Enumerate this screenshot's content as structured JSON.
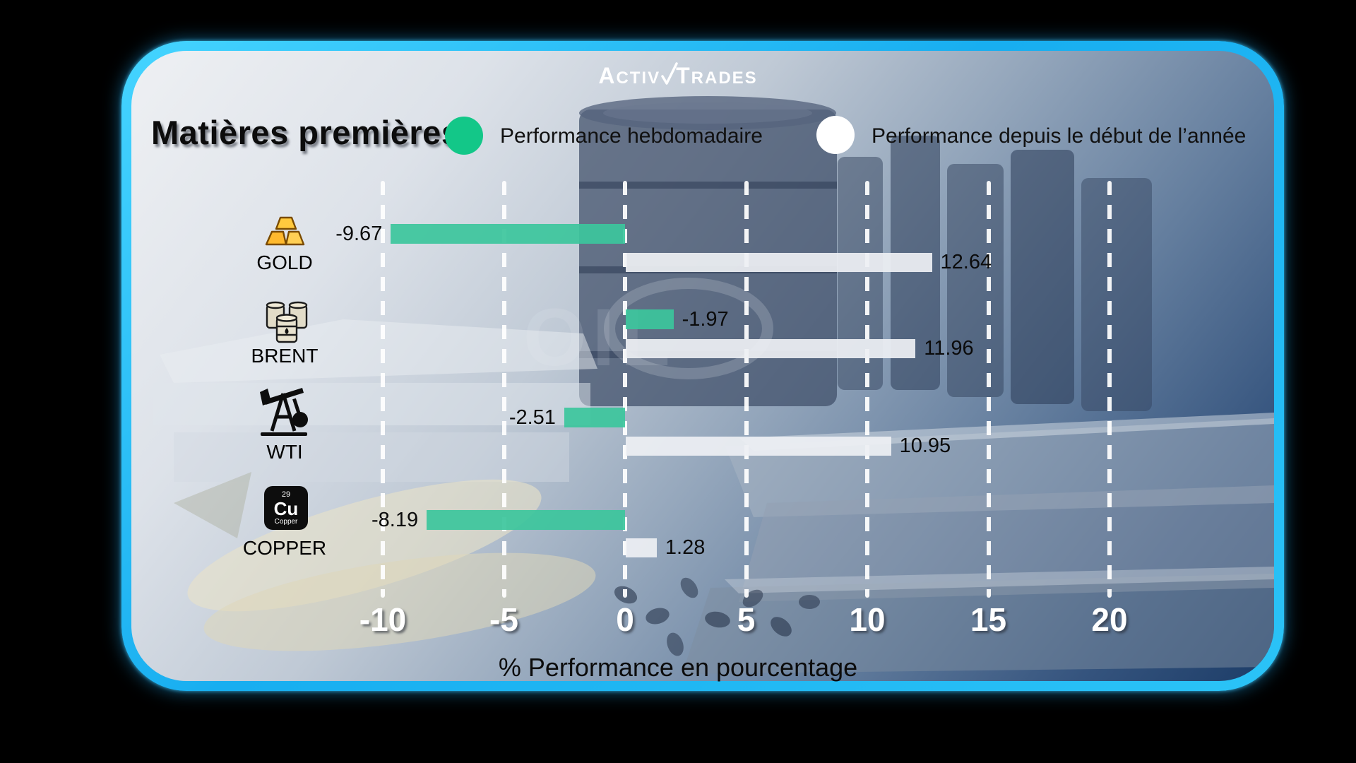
{
  "brand": {
    "name": "ActivTrades",
    "logo_part1": "Activ",
    "logo_part2": "Trades"
  },
  "header": {
    "title": "Matières premières"
  },
  "legend": {
    "weekly": {
      "label": "Performance hebdomadaire",
      "color": "#13c788"
    },
    "ytd": {
      "label": "Performance depuis le début de l’année",
      "color": "#ffffff"
    }
  },
  "chart_data": {
    "type": "bar",
    "orientation": "horizontal",
    "title": "Matières premières",
    "categories": [
      "GOLD",
      "BRENT",
      "WTI",
      "COPPER"
    ],
    "series": [
      {
        "name": "Performance hebdomadaire",
        "color": "#3cc59c",
        "values": [
          -9.67,
          -1.97,
          -2.51,
          -8.19
        ],
        "labels": [
          "-9.67",
          "-1.97",
          "-2.51",
          "-8.19"
        ]
      },
      {
        "name": "Performance depuis le début de l’année",
        "color": "#edeff3",
        "values": [
          12.64,
          11.96,
          10.95,
          1.28
        ],
        "labels": [
          "12.64",
          "11.96",
          "10.95",
          "1.28"
        ]
      }
    ],
    "xlabel": "% Performance en pourcentage",
    "xticks": [
      -10,
      -5,
      0,
      5,
      10,
      15,
      20
    ],
    "xlim": [
      -13,
      24
    ],
    "grid": "vertical-dashed-white",
    "legend_position": "top",
    "background_watermark": "OIL"
  },
  "copper_icon": {
    "number": "29",
    "symbol": "Cu",
    "name": "Copper"
  }
}
